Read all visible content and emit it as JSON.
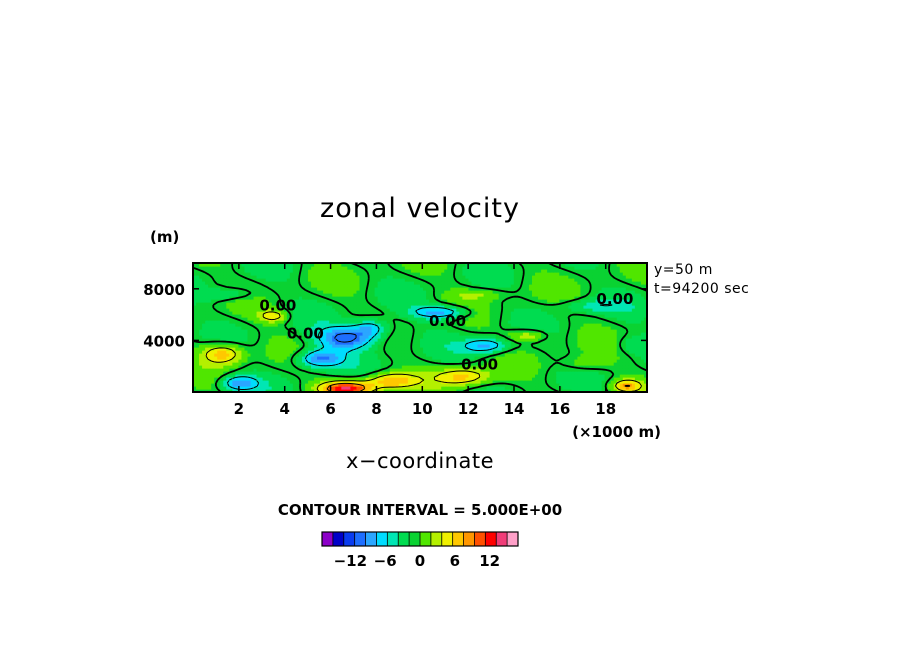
{
  "chart_data": {
    "type": "heatmap",
    "title": "zonal velocity",
    "xlabel": "x−coordinate",
    "x_unit": "(×1000 m)",
    "ylabel_unit": "(m)",
    "xlim": [
      0,
      19.8
    ],
    "ylim": [
      0,
      10000
    ],
    "x_ticks": [
      2,
      4,
      6,
      8,
      10,
      12,
      14,
      16,
      18
    ],
    "y_ticks": [
      4000,
      8000
    ],
    "info_lines": [
      "y=50 m",
      "t=94200 sec"
    ],
    "contour_labels": [
      {
        "text": "0.00",
        "x": 3.7,
        "y": 6800
      },
      {
        "text": "0.00",
        "x": 4.9,
        "y": 4600
      },
      {
        "text": "0.00",
        "x": 11.1,
        "y": 5600
      },
      {
        "text": "0.00",
        "x": 12.5,
        "y": 2200
      },
      {
        "text": "0.00",
        "x": 18.4,
        "y": 7300
      }
    ],
    "contour_interval_text": "CONTOUR INTERVAL = 5.000E+00",
    "colorbar": {
      "min": -15,
      "max": 15,
      "step": 2,
      "tick_labels": [
        "−12",
        "−6",
        "0",
        "6",
        "12"
      ],
      "tick_values": [
        -12,
        -6,
        0,
        6,
        12
      ],
      "colors": [
        "#8c00c8",
        "#0000c8",
        "#0a3cf0",
        "#1e6eff",
        "#2ba6ff",
        "#00dcff",
        "#00e6b4",
        "#00dc50",
        "#0ad232",
        "#50e600",
        "#b4f000",
        "#f0f000",
        "#ffc800",
        "#ff9600",
        "#ff5000",
        "#ff0000",
        "#f03c78",
        "#ffa0c8"
      ]
    },
    "features": [
      {
        "x": 6.7,
        "y": 4200,
        "amp": -11,
        "sx": 1.3,
        "sy": 900
      },
      {
        "x": 5.5,
        "y": 2600,
        "amp": -10,
        "sx": 1.0,
        "sy": 700
      },
      {
        "x": 7.8,
        "y": 5000,
        "amp": -7,
        "sx": 0.8,
        "sy": 700
      },
      {
        "x": 10.8,
        "y": 6200,
        "amp": -9,
        "sx": 1.2,
        "sy": 500
      },
      {
        "x": 12.8,
        "y": 3600,
        "amp": -8,
        "sx": 1.0,
        "sy": 600
      },
      {
        "x": 2.0,
        "y": 700,
        "amp": -9,
        "sx": 0.8,
        "sy": 600
      },
      {
        "x": 1.6,
        "y": 7600,
        "amp": -4,
        "sx": 1.2,
        "sy": 500
      },
      {
        "x": 17.4,
        "y": 6700,
        "amp": -4,
        "sx": 1.4,
        "sy": 500
      },
      {
        "x": 19.2,
        "y": 3700,
        "amp": -3,
        "sx": 0.8,
        "sy": 700
      },
      {
        "x": 6.7,
        "y": 300,
        "amp": 16,
        "sx": 1.1,
        "sy": 550
      },
      {
        "x": 8.6,
        "y": 900,
        "amp": 9,
        "sx": 1.1,
        "sy": 600
      },
      {
        "x": 11.8,
        "y": 1200,
        "amp": 8,
        "sx": 1.2,
        "sy": 700
      },
      {
        "x": 1.3,
        "y": 3000,
        "amp": 9,
        "sx": 0.9,
        "sy": 800
      },
      {
        "x": 3.5,
        "y": 5900,
        "amp": 7,
        "sx": 0.6,
        "sy": 450
      },
      {
        "x": 14.6,
        "y": 4400,
        "amp": 6,
        "sx": 0.8,
        "sy": 450
      },
      {
        "x": 18.9,
        "y": 500,
        "amp": 9,
        "sx": 0.6,
        "sy": 450
      },
      {
        "x": 17.0,
        "y": 2200,
        "amp": 3,
        "sx": 1.0,
        "sy": 600
      },
      {
        "x": 12.5,
        "y": 7600,
        "amp": 3,
        "sx": 1.2,
        "sy": 400
      }
    ]
  }
}
